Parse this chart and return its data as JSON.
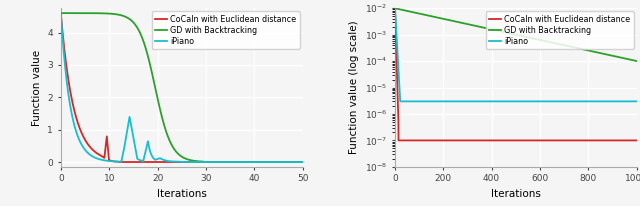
{
  "left_plot": {
    "xlabel": "Iterations",
    "ylabel": "Function value",
    "xlim": [
      0,
      50
    ],
    "ylim": [
      -0.15,
      4.75
    ],
    "yticks": [
      0,
      1,
      2,
      3,
      4
    ],
    "xticks": [
      0,
      10,
      20,
      30,
      40,
      50
    ],
    "colors": {
      "cocain": "#d62728",
      "gd": "#2ca02c",
      "ipiano": "#17becf"
    },
    "legend_labels": [
      "CoCaln with Euclidean distance",
      "GD with Backtracking",
      "iPiano"
    ]
  },
  "right_plot": {
    "xlabel": "Iterations",
    "ylabel": "Function value (log scale)",
    "xlim": [
      0,
      1000
    ],
    "ylim": [
      1e-08,
      0.01
    ],
    "xticks": [
      0,
      200,
      400,
      600,
      800,
      1000
    ],
    "colors": {
      "cocain": "#d62728",
      "gd": "#2ca02c",
      "ipiano": "#17becf"
    },
    "legend_labels": [
      "CoCaln with Euclidean distance",
      "GD with Backtracking",
      "iPiano"
    ]
  },
  "background_color": "#f5f5f5",
  "grid_color": "#ffffff",
  "linewidth": 1.3
}
